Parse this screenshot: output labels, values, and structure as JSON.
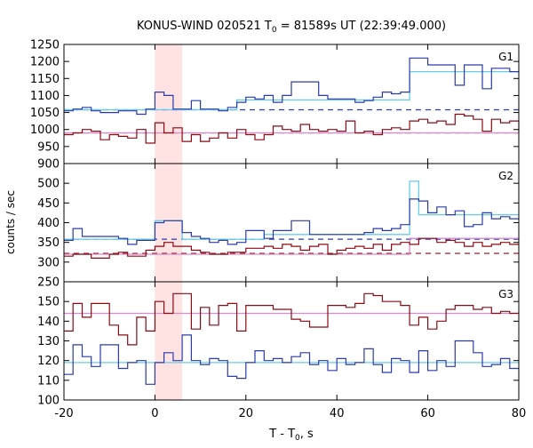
{
  "title": {
    "prefix": "KONUS-WIND 020521 T",
    "sub": "0",
    "suffix": " = 81589s UT (22:39:49.000)"
  },
  "ylabel": "counts / sec",
  "xlabel": {
    "main": "T - T",
    "sub": "0",
    "tail": ", s"
  },
  "colors": {
    "g1_series": "#2b3ba8",
    "g2_series": "#8b0a14",
    "g1_fit": "#66ccee",
    "g2_fit": "#dd88cc",
    "highlight": "#ffe3e3"
  },
  "chart_data": {
    "type": "line",
    "step": true,
    "xlim": [
      -20,
      80
    ],
    "x_ticks": [
      -20,
      0,
      20,
      40,
      60,
      80
    ],
    "highlight_interval": [
      0,
      6
    ],
    "bin_width": 2,
    "panels": [
      {
        "name": "G1",
        "ylim": [
          900,
          1250
        ],
        "y_ticks": [
          900,
          950,
          1000,
          1050,
          1100,
          1150,
          1200,
          1250
        ],
        "series": [
          {
            "color_key": "g1_series",
            "x": [
              -20,
              -18,
              -16,
              -14,
              -12,
              -10,
              -8,
              -6,
              -4,
              -2,
              0,
              2,
              4,
              6,
              8,
              10,
              12,
              14,
              16,
              18,
              20,
              22,
              24,
              26,
              28,
              30,
              32,
              34,
              36,
              38,
              40,
              42,
              44,
              46,
              48,
              50,
              52,
              54,
              56,
              58,
              60,
              62,
              64,
              66,
              68,
              70,
              72,
              74,
              76,
              78
            ],
            "y": [
              1055,
              1060,
              1065,
              1055,
              1050,
              1050,
              1055,
              1055,
              1045,
              1060,
              1110,
              1100,
              1060,
              1060,
              1085,
              1060,
              1060,
              1055,
              1065,
              1080,
              1095,
              1090,
              1100,
              1080,
              1100,
              1140,
              1140,
              1140,
              1100,
              1090,
              1090,
              1090,
              1080,
              1085,
              1095,
              1110,
              1105,
              1110,
              1210,
              1210,
              1190,
              1190,
              1190,
              1130,
              1190,
              1190,
              1120,
              1180,
              1180,
              1170
            ]
          },
          {
            "color_key": "g2_series",
            "x": [
              -20,
              -18,
              -16,
              -14,
              -12,
              -10,
              -8,
              -6,
              -4,
              -2,
              0,
              2,
              4,
              6,
              8,
              10,
              12,
              14,
              16,
              18,
              20,
              22,
              24,
              26,
              28,
              30,
              32,
              34,
              36,
              38,
              40,
              42,
              44,
              46,
              48,
              50,
              52,
              54,
              56,
              58,
              60,
              62,
              64,
              66,
              68,
              70,
              72,
              74,
              76,
              78
            ],
            "y": [
              985,
              990,
              1000,
              995,
              970,
              985,
              980,
              975,
              1000,
              960,
              1020,
              990,
              1005,
              965,
              985,
              965,
              975,
              990,
              975,
              1000,
              985,
              970,
              985,
              1010,
              1000,
              995,
              1015,
              1000,
              995,
              1000,
              995,
              1025,
              990,
              995,
              985,
              1000,
              1005,
              1000,
              1025,
              1030,
              1020,
              1025,
              1015,
              1045,
              1040,
              1030,
              995,
              1030,
              1020,
              1025
            ]
          }
        ],
        "fits": [
          {
            "color_key": "g1_fit",
            "x": [
              -20,
              18,
              56,
              80
            ],
            "y": [
              1058,
              1087,
              1170,
              1170
            ]
          },
          {
            "color_key": "g2_fit",
            "x": [
              -20,
              56,
              80
            ],
            "y": [
              990,
              990,
              1025
            ]
          }
        ],
        "background": [
          {
            "color_key": "g1_series",
            "x": [
              -20,
              80
            ],
            "y": [
              1058,
              1058
            ]
          },
          {
            "color_key": "g2_series",
            "x": [
              -20,
              80
            ],
            "y": [
              990,
              990
            ]
          }
        ]
      },
      {
        "name": "G2",
        "ylim": [
          250,
          550
        ],
        "y_ticks": [
          250,
          300,
          350,
          400,
          450,
          500
        ],
        "series": [
          {
            "color_key": "g1_series",
            "x": [
              -20,
              -18,
              -16,
              -14,
              -12,
              -10,
              -8,
              -6,
              -4,
              -2,
              0,
              2,
              4,
              6,
              8,
              10,
              12,
              14,
              16,
              18,
              20,
              22,
              24,
              26,
              28,
              30,
              32,
              34,
              36,
              38,
              40,
              42,
              44,
              46,
              48,
              50,
              52,
              54,
              56,
              58,
              60,
              62,
              64,
              66,
              68,
              70,
              72,
              74,
              76,
              78
            ],
            "y": [
              355,
              385,
              365,
              365,
              365,
              365,
              360,
              345,
              355,
              355,
              400,
              405,
              405,
              375,
              365,
              360,
              350,
              355,
              345,
              350,
              380,
              380,
              360,
              380,
              380,
              405,
              405,
              370,
              370,
              370,
              370,
              370,
              370,
              375,
              385,
              380,
              385,
              395,
              460,
              455,
              425,
              440,
              420,
              430,
              390,
              395,
              425,
              410,
              415,
              410
            ]
          },
          {
            "color_key": "g2_series",
            "x": [
              -20,
              -18,
              -16,
              -14,
              -12,
              -10,
              -8,
              -6,
              -4,
              -2,
              0,
              2,
              4,
              6,
              8,
              10,
              12,
              14,
              16,
              18,
              20,
              22,
              24,
              26,
              28,
              30,
              32,
              34,
              36,
              38,
              40,
              42,
              44,
              46,
              48,
              50,
              52,
              54,
              56,
              58,
              60,
              62,
              64,
              66,
              68,
              70,
              72,
              74,
              76,
              78
            ],
            "y": [
              315,
              320,
              320,
              310,
              310,
              320,
              325,
              315,
              315,
              330,
              340,
              350,
              340,
              340,
              330,
              325,
              320,
              320,
              325,
              325,
              335,
              335,
              340,
              335,
              345,
              340,
              330,
              340,
              345,
              320,
              330,
              335,
              340,
              335,
              345,
              330,
              345,
              350,
              345,
              360,
              360,
              350,
              355,
              350,
              340,
              350,
              340,
              345,
              350,
              345
            ]
          }
        ],
        "fits": [
          {
            "color_key": "g1_fit",
            "x": [
              -20,
              0,
              6,
              24,
              56,
              58,
              80
            ],
            "y": [
              358,
              405,
              358,
              370,
              505,
              420,
              420
            ]
          },
          {
            "color_key": "g2_fit",
            "x": [
              -20,
              56,
              80
            ],
            "y": [
              320,
              360,
              355
            ]
          }
        ],
        "background": [
          {
            "color_key": "g1_series",
            "x": [
              -20,
              80
            ],
            "y": [
              358,
              358
            ]
          },
          {
            "color_key": "g2_series",
            "x": [
              -20,
              80
            ],
            "y": [
              322,
              322
            ]
          }
        ]
      },
      {
        "name": "G3",
        "ylim": [
          100,
          160
        ],
        "y_ticks": [
          100,
          110,
          120,
          130,
          140,
          150
        ],
        "series": [
          {
            "color_key": "g2_series",
            "x": [
              -20,
              -18,
              -16,
              -14,
              -12,
              -10,
              -8,
              -6,
              -4,
              -2,
              0,
              2,
              4,
              6,
              8,
              10,
              12,
              14,
              16,
              18,
              20,
              22,
              24,
              26,
              28,
              30,
              32,
              34,
              36,
              38,
              40,
              42,
              44,
              46,
              48,
              50,
              52,
              54,
              56,
              58,
              60,
              62,
              64,
              66,
              68,
              70,
              72,
              74,
              76,
              78
            ],
            "y": [
              135,
              149,
              142,
              149,
              149,
              138,
              133,
              128,
              142,
              135,
              150,
              144,
              154,
              154,
              136,
              147,
              138,
              148,
              149,
              135,
              148,
              148,
              148,
              146,
              146,
              141,
              140,
              137,
              137,
              148,
              148,
              147,
              149,
              154,
              153,
              150,
              150,
              148,
              138,
              142,
              136,
              140,
              146,
              148,
              148,
              146,
              147,
              144,
              145,
              144
            ]
          },
          {
            "color_key": "g1_series",
            "x": [
              -20,
              -18,
              -16,
              -14,
              -12,
              -10,
              -8,
              -6,
              -4,
              -2,
              0,
              2,
              4,
              6,
              8,
              10,
              12,
              14,
              16,
              18,
              20,
              22,
              24,
              26,
              28,
              30,
              32,
              34,
              36,
              38,
              40,
              42,
              44,
              46,
              48,
              50,
              52,
              54,
              56,
              58,
              60,
              62,
              64,
              66,
              68,
              70,
              72,
              74,
              76,
              78
            ],
            "y": [
              113,
              128,
              122,
              117,
              128,
              128,
              116,
              119,
              120,
              108,
              119,
              124,
              120,
              133,
              120,
              118,
              121,
              120,
              112,
              111,
              119,
              125,
              120,
              121,
              119,
              122,
              124,
              118,
              120,
              115,
              121,
              118,
              119,
              126,
              118,
              114,
              121,
              120,
              114,
              125,
              115,
              120,
              117,
              130,
              130,
              124,
              117,
              118,
              121,
              116
            ]
          }
        ],
        "fits": [
          {
            "color_key": "g1_fit",
            "x": [
              -20,
              80
            ],
            "y": [
              119,
              119
            ]
          },
          {
            "color_key": "g2_fit",
            "x": [
              -20,
              80
            ],
            "y": [
              144,
              144
            ]
          }
        ],
        "background": []
      }
    ]
  }
}
